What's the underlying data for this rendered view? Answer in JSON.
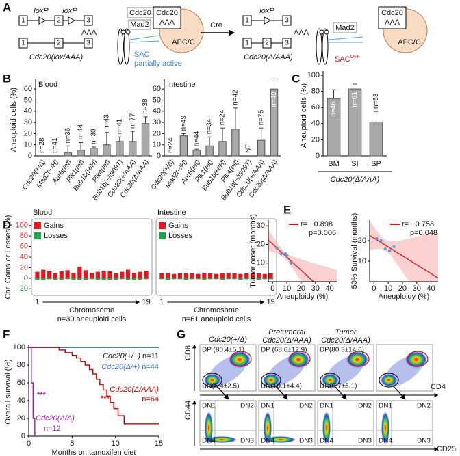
{
  "panel_a": {
    "label": "A",
    "left": {
      "loxp": [
        "loxP",
        "loxP"
      ],
      "allele1_exons": [
        "1",
        "2",
        "3"
      ],
      "allele2_exons": [
        "1",
        "2",
        "3"
      ],
      "polya": "AAA",
      "genotype": "Cdc20(lox/AAA)",
      "free_cdc20": "Cdc20",
      "mad2": "Mad2",
      "bound_cdc20": "Cdc20",
      "bound_aaa": "AAA",
      "apc": "APC/C",
      "sac": [
        "SAC",
        "partially active"
      ]
    },
    "arrow": "Cre",
    "right": {
      "loxp": "loxP",
      "allele1_exons": [
        "1",
        "3"
      ],
      "allele2_exons": [
        "1",
        "2",
        "3"
      ],
      "polya": "AAA",
      "genotype": "Cdc20(Δ/AAA)",
      "mad2": "Mad2",
      "bound_cdc20": "Cdc20",
      "bound_aaa": "AAA",
      "apc": "APC/C",
      "sac": "SAC",
      "sac_sup": "OFF"
    }
  },
  "chart_data": [
    {
      "type": "bar",
      "panel_label": "B",
      "title": "Blood",
      "ylabel": "Aneuploid cells (%)",
      "categories": [
        "Cdc20(+/Δ)",
        "Mad2(−/H)",
        "AurB(tet)",
        "Plk1(tet)",
        "Bub1b(H/H)",
        "Plk4(tet)",
        "Bub1b(−/I909T)",
        "Cdc20(+/AAA)",
        "Cdc20(Δ/AAA)"
      ],
      "values": [
        0,
        0,
        3,
        5,
        7,
        10,
        13,
        13,
        29
      ],
      "errors": [
        null,
        null,
        6,
        7,
        1,
        11,
        4,
        9,
        6
      ],
      "n_labels": [
        "n=28",
        "n=41",
        "n=36",
        "n=44",
        "n=30",
        "n=43",
        "n=41",
        "n=77",
        "n=38"
      ],
      "color": "#a9a9a9",
      "ylim": [
        0,
        65
      ],
      "yticks": [
        0,
        10,
        20,
        30,
        40,
        50,
        60
      ]
    },
    {
      "type": "bar",
      "title": "Intestine",
      "categories": [
        "Cdc20(+/Δ)",
        "Mad2(−/H)",
        "AurB(tet)",
        "Plk1(tet)",
        "Bub1b(H/H)",
        "Plk4(tet)",
        "Bub1b(−/I909T)",
        "Cdc20(+/AAA)",
        "Cdc20(Δ/AAA)"
      ],
      "values": [
        0,
        18,
        5,
        9,
        13,
        24,
        null,
        14,
        60
      ],
      "errors": [
        null,
        2,
        1,
        8,
        12,
        19,
        null,
        11,
        9
      ],
      "n_labels": [
        "n=24",
        "n=49",
        "n=44",
        "n=34",
        "n=24",
        "n=42",
        "NT",
        "n=75",
        "n=40"
      ],
      "color": "#a9a9a9",
      "ylim": [
        0,
        65
      ],
      "yticks": [
        0,
        10,
        20,
        30,
        40,
        50,
        60
      ]
    },
    {
      "type": "bar",
      "panel_label": "C",
      "ylabel": "Aneuploid cells (%)",
      "categories": [
        "BM",
        "SI",
        "SP"
      ],
      "values": [
        71,
        83,
        42
      ],
      "errors": [
        11,
        6,
        13
      ],
      "n_labels": [
        "n=46",
        "n=61",
        "n=53"
      ],
      "group_label": "Cdc20(Δ/AAA)",
      "color": "#a9a9a9",
      "ylim": [
        0,
        100
      ],
      "yticks": [
        0,
        20,
        40,
        60,
        80,
        100
      ]
    },
    {
      "type": "bar",
      "panel_label": "D",
      "title": "Blood",
      "ylabel": "Chr. Gains or Losses (%)",
      "categories": [
        "1",
        null,
        null,
        null,
        null,
        null,
        null,
        null,
        null,
        null,
        null,
        null,
        null,
        null,
        null,
        null,
        null,
        null,
        "19"
      ],
      "series": [
        {
          "name": "Gains",
          "color": "#e8141b",
          "values": [
            12,
            16,
            14,
            10,
            13,
            15,
            10,
            22,
            15,
            10,
            12,
            14,
            13,
            9,
            12,
            16,
            10,
            12,
            14
          ]
        },
        {
          "name": "Losses",
          "color": "#22a34a",
          "values": [
            -3,
            -4,
            -2,
            -3,
            -3,
            -2,
            -4,
            -3,
            -3,
            -2,
            -3,
            -4,
            -3,
            -3,
            -2,
            -3,
            -4,
            -3,
            -2
          ]
        }
      ],
      "xlabel": "Chromosome",
      "note": "n=30 aneuploid cells",
      "ylim": [
        -30,
        110
      ],
      "yticks": [
        {
          "value": -20,
          "label": "20"
        },
        0,
        20,
        40,
        60,
        80,
        100
      ],
      "ytick_colors": [
        "#22a34a",
        "#333333",
        "#e8141b",
        "#e8141b",
        "#e8141b",
        "#e8141b",
        "#e8141b"
      ]
    },
    {
      "type": "bar",
      "title": "Intestine",
      "categories": [
        "1",
        null,
        null,
        null,
        null,
        null,
        null,
        null,
        null,
        null,
        null,
        null,
        null,
        null,
        null,
        null,
        null,
        null,
        "19"
      ],
      "series": [
        {
          "name": "Gains",
          "color": "#e8141b",
          "values": [
            9,
            10,
            8,
            9,
            10,
            9,
            8,
            10,
            9,
            8,
            9,
            10,
            9,
            8,
            9,
            10,
            9,
            8,
            9
          ]
        },
        {
          "name": "Losses",
          "color": "#22a34a",
          "values": [
            -2,
            -3,
            -2,
            -2,
            -3,
            -2,
            -2,
            -3,
            -2,
            -2,
            -3,
            -2,
            -2,
            -3,
            -2,
            -2,
            -3,
            -2,
            -2
          ]
        }
      ],
      "xlabel": "Chromosome",
      "note": "n=61 aneuploid cells",
      "ylim": [
        -30,
        110
      ],
      "yticks": [
        {
          "value": -20,
          "label": "20"
        },
        0,
        20,
        40,
        60,
        80,
        100
      ]
    },
    {
      "type": "scatter",
      "panel_label": "E",
      "x": [
        3,
        6,
        9,
        10,
        13
      ],
      "values": [
        18,
        15,
        15,
        14,
        10
      ],
      "color": "#5a9bd5",
      "fit_color": "#e01010",
      "band_color": "#f9c4c4",
      "xlim": [
        -3,
        45
      ],
      "xticks": [
        0,
        10,
        20,
        30,
        40
      ],
      "ylim": [
        0,
        33
      ],
      "yticks": [
        10,
        20,
        30
      ],
      "xlabel": "Aneuploidy (%)",
      "ylabel": "Tumor onset (months)",
      "r_label": "r= −0.898",
      "p_label": "p=0.006"
    },
    {
      "type": "scatter",
      "x": [
        2,
        5,
        8,
        11,
        14
      ],
      "values": [
        21,
        20,
        16,
        15,
        17
      ],
      "color": "#5a9bd5",
      "fit_color": "#e01010",
      "band_color": "#f9c4c4",
      "xlim": [
        -3,
        45
      ],
      "xticks": [
        0,
        10,
        20,
        30,
        40
      ],
      "ylim": [
        0,
        30
      ],
      "yticks": [
        10,
        20
      ],
      "xlabel": "Aneuploidy (%)",
      "ylabel": "50% Survival (months)",
      "r_label": "r= −0.758",
      "p_label": "p=0.048"
    },
    {
      "type": "line",
      "panel_label": "F",
      "xlabel": "Months on tamoxifen diet",
      "ylabel": "Overall survival (%)",
      "xlim": [
        0,
        15
      ],
      "xticks": [
        0,
        5,
        10,
        15
      ],
      "ylim": [
        0,
        100
      ],
      "yticks": [
        0,
        20,
        40,
        60,
        80,
        100
      ],
      "series": [
        {
          "name": "Cdc20(+/+)",
          "n_label": "n=11",
          "color": "#111111",
          "x": [
            0,
            15
          ],
          "values": [
            100,
            100
          ]
        },
        {
          "name": "Cdc20(Δ/+)",
          "n_label": "n=44",
          "color": "#3a78e0",
          "x": [
            0,
            15
          ],
          "values": [
            100,
            100
          ]
        },
        {
          "name": "Cdc20(Δ/AAA)",
          "n_label": "n=64",
          "color": "#c80000",
          "x": [
            0,
            3.5,
            3.5,
            4.2,
            4.2,
            5,
            5,
            5.5,
            5.5,
            6,
            6,
            6.5,
            6.5,
            7,
            7,
            7.4,
            7.4,
            7.8,
            7.8,
            8.2,
            8.2,
            8.6,
            8.6,
            9,
            9,
            9.4,
            9.4,
            9.8,
            9.8,
            10.3,
            10.3,
            11,
            11,
            15
          ],
          "values": [
            100,
            100,
            97,
            97,
            94,
            94,
            91,
            91,
            88,
            88,
            84,
            84,
            80,
            80,
            75,
            75,
            70,
            70,
            64,
            64,
            58,
            58,
            52,
            52,
            45,
            45,
            38,
            38,
            31,
            31,
            23,
            23,
            14,
            14
          ]
        },
        {
          "name": "Cdc20(Δ/Δ)",
          "n_label": "n=12",
          "color": "#a21caf",
          "x": [
            0,
            0.3,
            0.3,
            0.5,
            0.5,
            0.7,
            0.7
          ],
          "values": [
            100,
            100,
            60,
            60,
            20,
            20,
            0
          ]
        }
      ],
      "annotations": [
        {
          "text": "***",
          "color": "#a21caf"
        },
        {
          "text": "***",
          "color": "#c80000"
        }
      ]
    }
  ],
  "panel_g": {
    "label": "G",
    "columns": [
      {
        "header": [
          "Cdc20(+/Δ)"
        ],
        "dp": "DP (80.4±5.1)",
        "dn": "DN(5.4±2.5)"
      },
      {
        "header": [
          "Pretumoral",
          "Cdc20(Δ/AAA)"
        ],
        "dp": "DP (68.6±12.9)",
        "dn": "DN(10.1±4.4)"
      },
      {
        "header": [
          "Tumor",
          "Cdc20(Δ/AAA)"
        ],
        "dp": "DP(80.3±14.6)",
        "dn": "DN(6.7±5.1)"
      },
      {
        "header": []
      }
    ],
    "quadrants": [
      "DN1",
      "DN2",
      "DN4",
      "DN3"
    ],
    "axes": {
      "cd8": "CD8",
      "cd4": "CD4",
      "cd44": "CD44",
      "cd25": "CD25"
    }
  }
}
